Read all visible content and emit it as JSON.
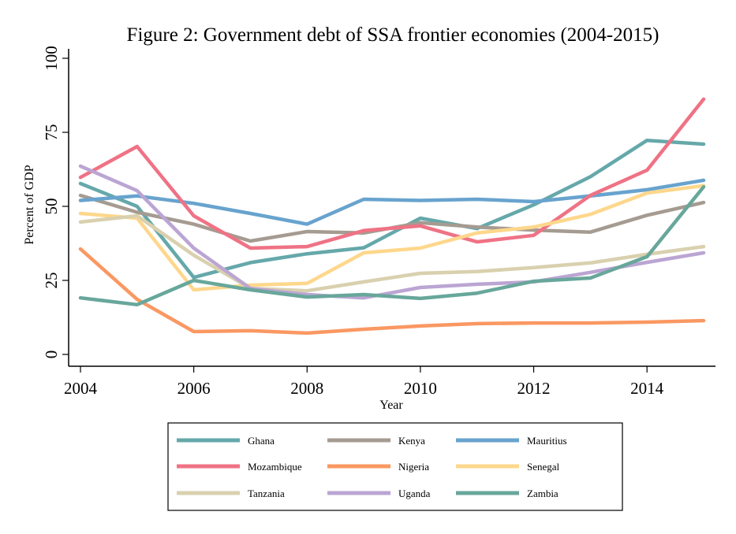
{
  "chart_data": {
    "type": "line",
    "title": "Figure 2: Government debt of SSA frontier economies (2004-2015)",
    "xlabel": "Year",
    "ylabel": "Percent of GDP",
    "x": [
      2004,
      2005,
      2006,
      2007,
      2008,
      2009,
      2010,
      2011,
      2012,
      2013,
      2014,
      2015
    ],
    "xticks": [
      "2004",
      "2006",
      "2008",
      "2010",
      "2012",
      "2014"
    ],
    "xtick_values": [
      2004,
      2006,
      2008,
      2010,
      2012,
      2014
    ],
    "yticks": [
      "0",
      "25",
      "50",
      "75",
      "100"
    ],
    "ytick_values": [
      0,
      25,
      50,
      75,
      100
    ],
    "ylim": [
      0,
      100
    ],
    "xlim": [
      2004,
      2015
    ],
    "grid": false,
    "legend_position": "bottom",
    "series": [
      {
        "name": "Ghana",
        "color": "#65A8AA",
        "values": [
          57.7,
          50.0,
          26.0,
          31.0,
          34.0,
          36.0,
          46.0,
          42.5,
          50.5,
          60.0,
          72.3,
          71.0
        ]
      },
      {
        "name": "Kenya",
        "color": "#A59B91",
        "values": [
          53.7,
          48.0,
          44.0,
          38.3,
          41.5,
          41.0,
          44.5,
          43.0,
          42.0,
          41.3,
          47.0,
          51.3
        ]
      },
      {
        "name": "Mauritius",
        "color": "#68A3CE",
        "values": [
          52.0,
          53.5,
          51.0,
          47.6,
          44.0,
          52.4,
          52.0,
          52.4,
          51.6,
          53.5,
          55.6,
          58.8
        ]
      },
      {
        "name": "Mozambique",
        "color": "#EF7285",
        "values": [
          59.8,
          70.2,
          46.8,
          35.9,
          36.4,
          41.8,
          43.4,
          38.0,
          40.2,
          53.7,
          62.2,
          86.2
        ]
      },
      {
        "name": "Nigeria",
        "color": "#FA9862",
        "values": [
          35.6,
          18.6,
          7.7,
          8.0,
          7.2,
          8.5,
          9.6,
          10.4,
          10.6,
          10.6,
          10.9,
          11.4
        ]
      },
      {
        "name": "Senegal",
        "color": "#FED78C",
        "values": [
          47.6,
          46.0,
          21.8,
          23.4,
          24.0,
          34.3,
          35.9,
          41.0,
          43.0,
          47.3,
          54.5,
          57.0
        ]
      },
      {
        "name": "Tanzania",
        "color": "#D9D0AE",
        "values": [
          44.7,
          46.8,
          33.5,
          22.3,
          21.5,
          24.5,
          27.4,
          28.0,
          29.3,
          30.9,
          33.8,
          36.4
        ]
      },
      {
        "name": "Uganda",
        "color": "#BBA5D3",
        "values": [
          63.6,
          55.3,
          35.9,
          22.3,
          20.2,
          19.1,
          22.6,
          23.7,
          24.5,
          27.7,
          31.1,
          34.3
        ]
      },
      {
        "name": "Zambia",
        "color": "#68A79B",
        "values": [
          19.1,
          16.8,
          25.0,
          21.8,
          19.4,
          20.2,
          18.9,
          20.7,
          24.7,
          25.8,
          33.0,
          56.6
        ]
      }
    ]
  }
}
